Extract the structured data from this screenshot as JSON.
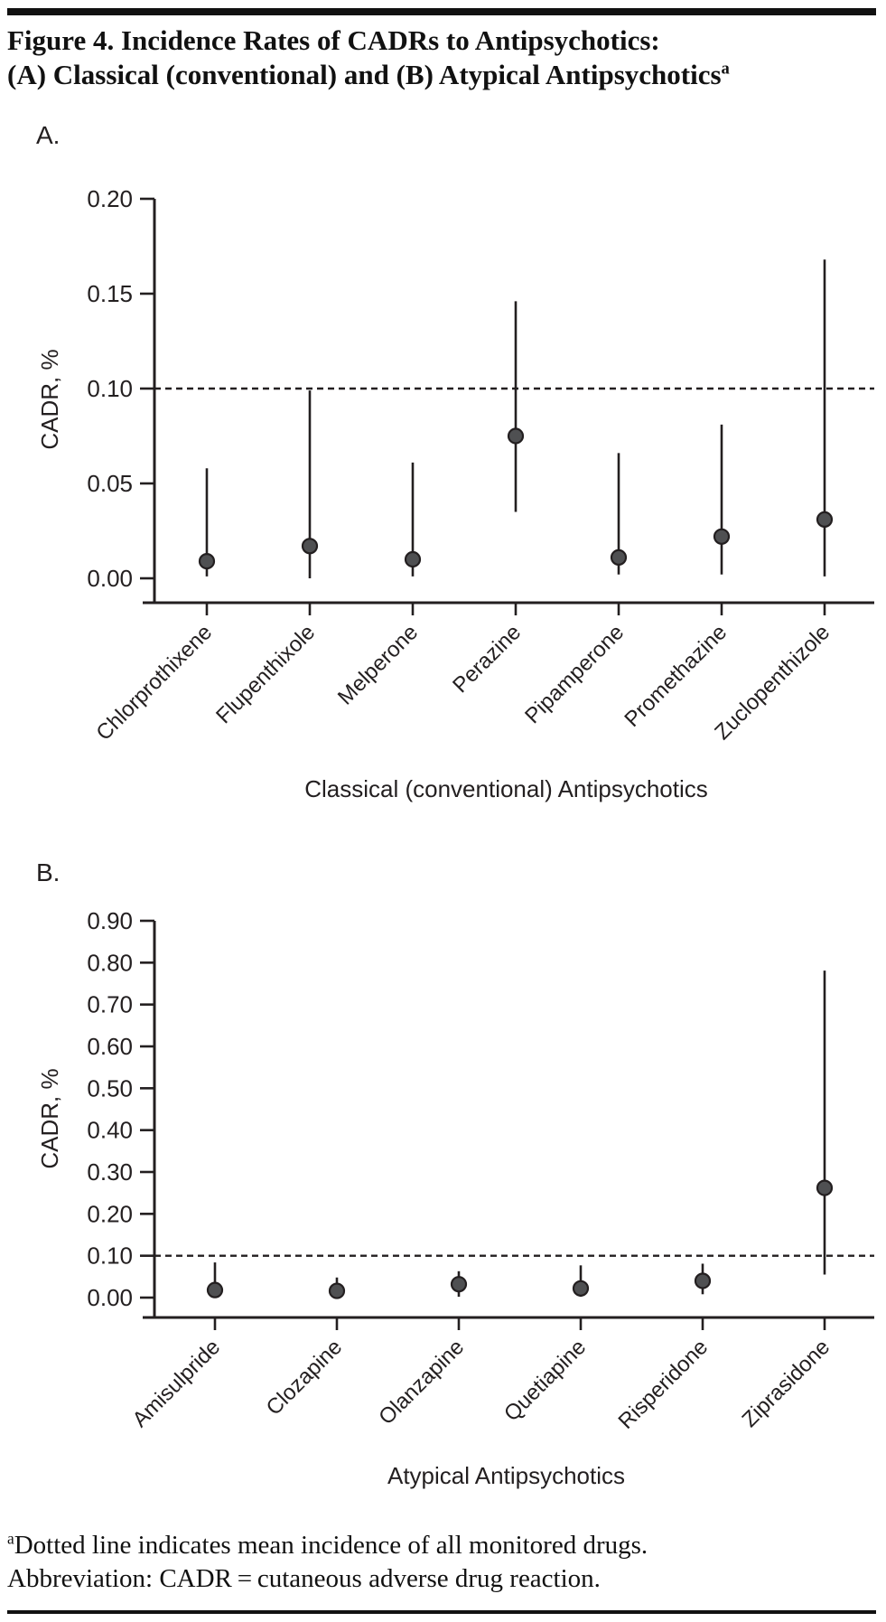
{
  "page": {
    "title_line1": "Figure 4. Incidence Rates of CADRs to Antipsychotics:",
    "title_line2": "(A) Classical (conventional) and (B) Atypical Antipsychotics",
    "title_superscript": "a",
    "footnote_superscript": "a",
    "footnote_line1": "Dotted line indicates mean incidence of all monitored drugs.",
    "footnote_line2": "Abbreviation: CADR = cutaneous adverse drug reaction."
  },
  "chart_data": [
    {
      "panel": "A.",
      "type": "scatter",
      "marker": "filled-circle-with-ci-whiskers",
      "categories": [
        "Chlorprothixene",
        "Flupenthixole",
        "Melperone",
        "Perazine",
        "Pipamperone",
        "Promethazine",
        "Zuclopenthizole"
      ],
      "values": [
        0.009,
        0.017,
        0.01,
        0.075,
        0.011,
        0.022,
        0.031
      ],
      "ci_low": [
        0.001,
        0.0,
        0.001,
        0.035,
        0.002,
        0.002,
        0.001
      ],
      "ci_high": [
        0.058,
        0.099,
        0.061,
        0.146,
        0.066,
        0.081,
        0.168
      ],
      "ylabel": "CADR, %",
      "xlabel": "Classical (conventional) Antipsychotics",
      "ylim": [
        0,
        0.2
      ],
      "ytick_labels": [
        "0.00",
        "0.05",
        "0.10",
        "0.15",
        "0.20"
      ],
      "dotted_line_y": 0.1,
      "grid": false,
      "legend": "none"
    },
    {
      "panel": "B.",
      "type": "scatter",
      "marker": "filled-circle-with-ci-whiskers",
      "categories": [
        "Amisulpride",
        "Clozapine",
        "Olanzapine",
        "Quetiapine",
        "Risperidone",
        "Ziprasidone"
      ],
      "values": [
        0.018,
        0.016,
        0.032,
        0.022,
        0.04,
        0.262
      ],
      "ci_low": [
        0.0,
        0.003,
        0.002,
        0.002,
        0.008,
        0.055
      ],
      "ci_high": [
        0.084,
        0.048,
        0.063,
        0.077,
        0.081,
        0.781
      ],
      "ylabel": "CADR, %",
      "xlabel": "Atypical Antipsychotics",
      "ylim": [
        0,
        0.9
      ],
      "ytick_labels": [
        "0.00",
        "0.10",
        "0.20",
        "0.30",
        "0.40",
        "0.50",
        "0.60",
        "0.70",
        "0.80",
        "0.90"
      ],
      "dotted_line_y": 0.1,
      "grid": false,
      "legend": "none"
    }
  ],
  "colors": {
    "ink": "#231f20",
    "point_fill": "#4f5052",
    "background": "#ffffff"
  }
}
